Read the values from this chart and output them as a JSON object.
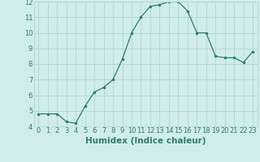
{
  "x": [
    0,
    1,
    2,
    3,
    4,
    5,
    6,
    7,
    8,
    9,
    10,
    11,
    12,
    13,
    14,
    15,
    16,
    17,
    18,
    19,
    20,
    21,
    22,
    23
  ],
  "y": [
    4.8,
    4.8,
    4.8,
    4.3,
    4.2,
    5.3,
    6.2,
    6.5,
    7.0,
    8.3,
    10.0,
    11.0,
    11.7,
    11.8,
    12.0,
    12.0,
    11.4,
    10.0,
    10.0,
    8.5,
    8.4,
    8.4,
    8.1,
    8.8
  ],
  "xlabel": "Humidex (Indice chaleur)",
  "ylim": [
    4,
    12
  ],
  "xlim": [
    -0.5,
    23.5
  ],
  "yticks": [
    4,
    5,
    6,
    7,
    8,
    9,
    10,
    11,
    12
  ],
  "xticks": [
    0,
    1,
    2,
    3,
    4,
    5,
    6,
    7,
    8,
    9,
    10,
    11,
    12,
    13,
    14,
    15,
    16,
    17,
    18,
    19,
    20,
    21,
    22,
    23
  ],
  "xtick_labels": [
    "0",
    "1",
    "2",
    "3",
    "4",
    "5",
    "6",
    "7",
    "8",
    "9",
    "10",
    "11",
    "12",
    "13",
    "14",
    "15",
    "16",
    "17",
    "18",
    "19",
    "20",
    "21",
    "22",
    "23"
  ],
  "line_color": "#2d7d6e",
  "marker_color": "#2d7d6e",
  "bg_color": "#d0eceb",
  "grid_color": "#b0d8d4",
  "xlabel_color": "#2d7d6e",
  "tick_color": "#2d7d6e",
  "xlabel_fontsize": 7.5,
  "tick_fontsize": 6.0,
  "linewidth": 0.9,
  "markersize": 2.0
}
